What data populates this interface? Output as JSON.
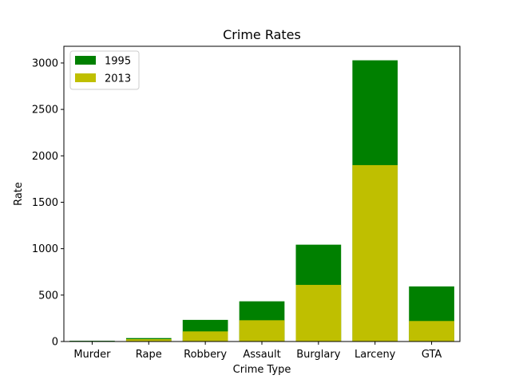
{
  "chart_data": {
    "type": "bar",
    "title": "Crime Rates",
    "xlabel": "Crime Type",
    "ylabel": "Rate",
    "categories": [
      "Murder",
      "Rape",
      "Robbery",
      "Assault",
      "Burglary",
      "Larceny",
      "GTA"
    ],
    "series": [
      {
        "name": "1995",
        "color": "#008000",
        "values": [
          8,
          37,
          233,
          433,
          1043,
          3029,
          593
        ]
      },
      {
        "name": "2013",
        "color": "#bfbf00",
        "values": [
          4,
          25,
          109,
          229,
          610,
          1900,
          221
        ]
      }
    ],
    "overlay": true,
    "ylim": [
      0,
      3180
    ],
    "yticks": [
      0,
      500,
      1000,
      1500,
      2000,
      2500,
      3000
    ],
    "grid": false,
    "legend_position": "top-left"
  }
}
